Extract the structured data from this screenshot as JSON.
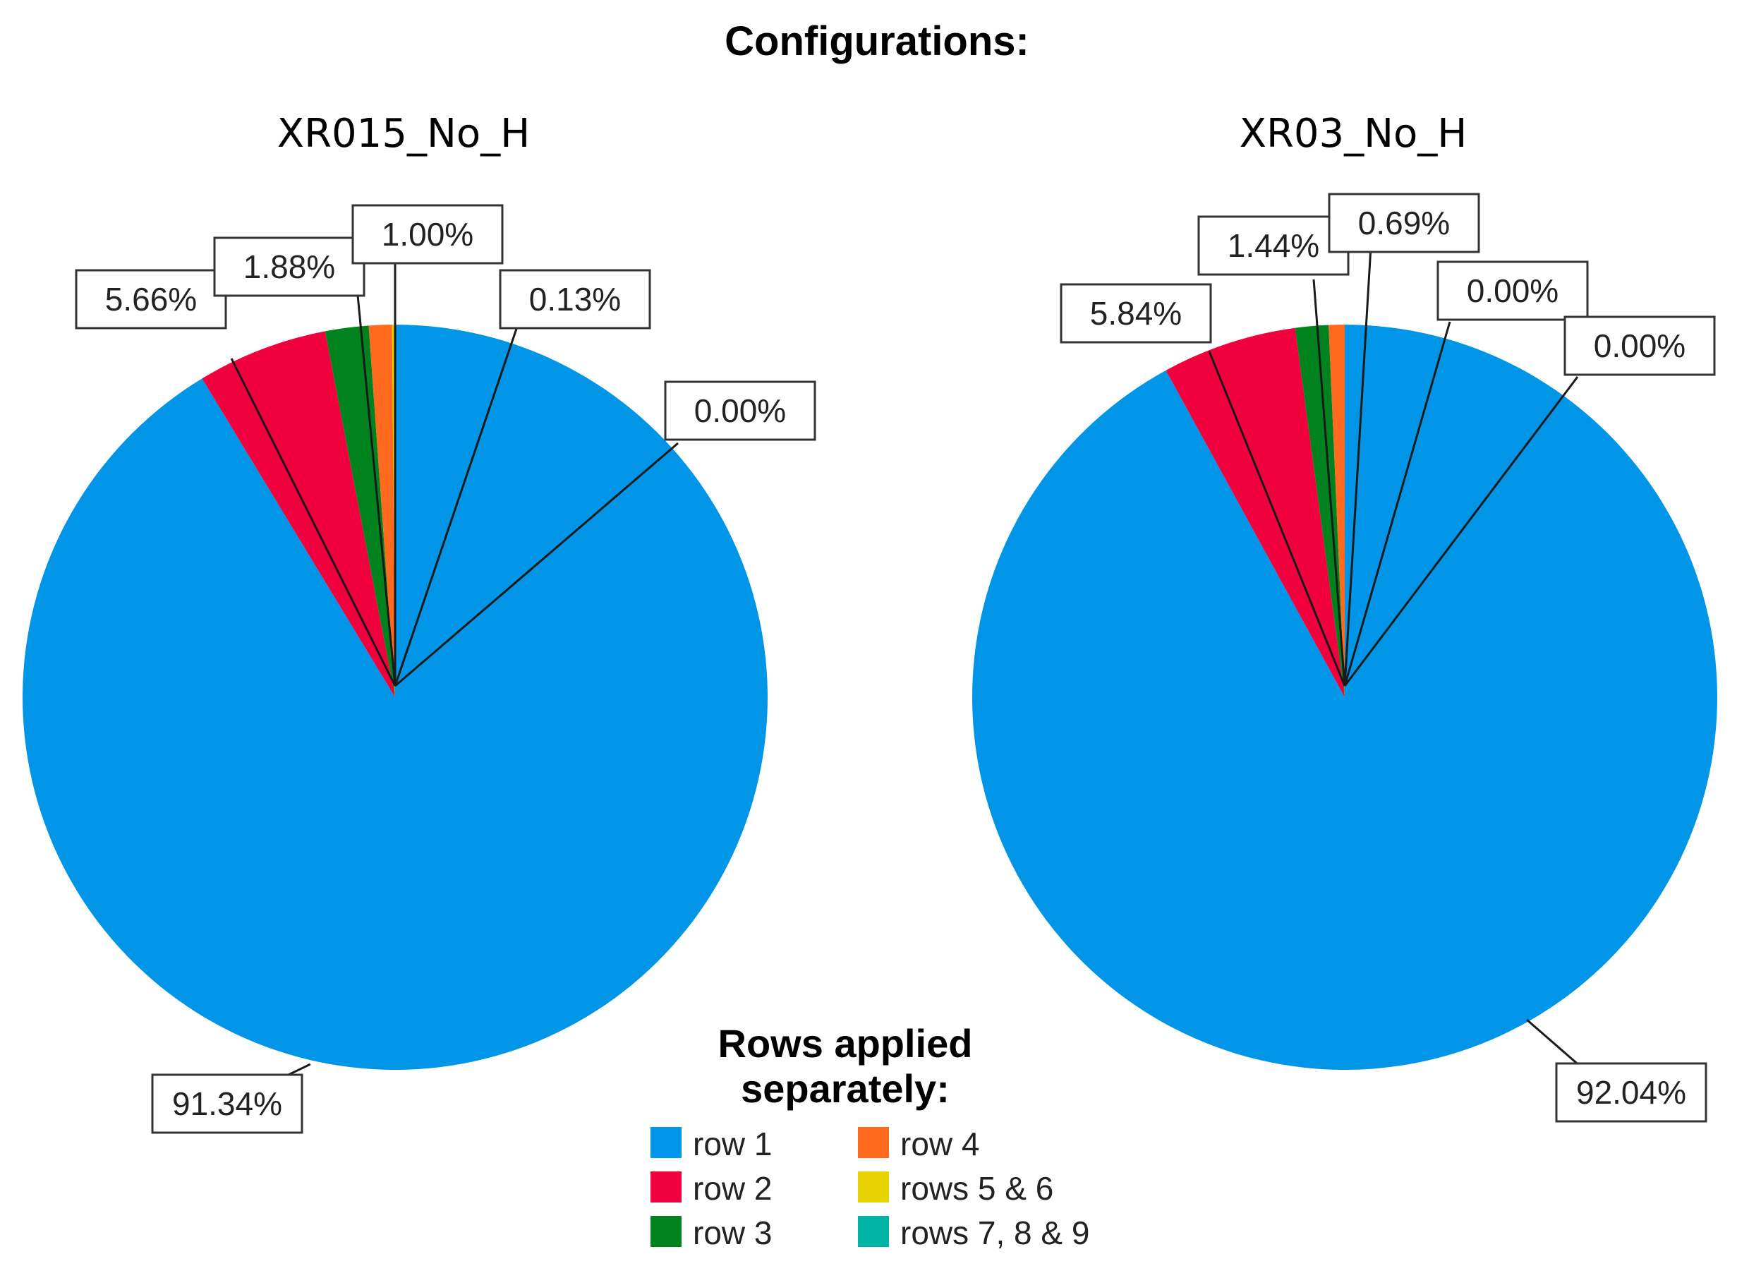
{
  "page": {
    "title": "Configurations:"
  },
  "legend": {
    "title_line1": "Rows applied",
    "title_line2": "separately:"
  },
  "chart_data": [
    {
      "type": "pie",
      "title": "XR015_No_H",
      "unit": "%",
      "slices": [
        {
          "category": "row 1",
          "value": 91.34,
          "label": "91.34%",
          "color": "#0095E6"
        },
        {
          "category": "row 2",
          "value": 5.66,
          "label": "5.66%",
          "color": "#F0003C"
        },
        {
          "category": "row 3",
          "value": 1.88,
          "label": "1.88%",
          "color": "#00821E"
        },
        {
          "category": "row 4",
          "value": 1.0,
          "label": "1.00%",
          "color": "#FF6A1E"
        },
        {
          "category": "rows 5 & 6",
          "value": 0.13,
          "label": "0.13%",
          "color": "#E6D200"
        },
        {
          "category": "rows 7, 8 & 9",
          "value": 0.0,
          "label": "0.00%",
          "color": "#00B4A5"
        }
      ]
    },
    {
      "type": "pie",
      "title": "XR03_No_H",
      "unit": "%",
      "slices": [
        {
          "category": "row 1",
          "value": 92.04,
          "label": "92.04%",
          "color": "#0095E6"
        },
        {
          "category": "row 2",
          "value": 5.84,
          "label": "5.84%",
          "color": "#F0003C"
        },
        {
          "category": "row 3",
          "value": 1.44,
          "label": "1.44%",
          "color": "#00821E"
        },
        {
          "category": "row 4",
          "value": 0.69,
          "label": "0.69%",
          "color": "#FF6A1E"
        },
        {
          "category": "rows 5 & 6",
          "value": 0.0,
          "label": "0.00%",
          "color": "#E6D200"
        },
        {
          "category": "rows 7, 8 & 9",
          "value": 0.0,
          "label": "0.00%",
          "color": "#00B4A5"
        }
      ]
    }
  ],
  "legend_entries": [
    {
      "label": "row 1",
      "color": "#0095E6"
    },
    {
      "label": "row 2",
      "color": "#F0003C"
    },
    {
      "label": "row 3",
      "color": "#00821E"
    },
    {
      "label": "row 4",
      "color": "#FF6A1E"
    },
    {
      "label": "rows 5 & 6",
      "color": "#E6D200"
    },
    {
      "label": "rows 7, 8 & 9",
      "color": "#00B4A5"
    }
  ]
}
